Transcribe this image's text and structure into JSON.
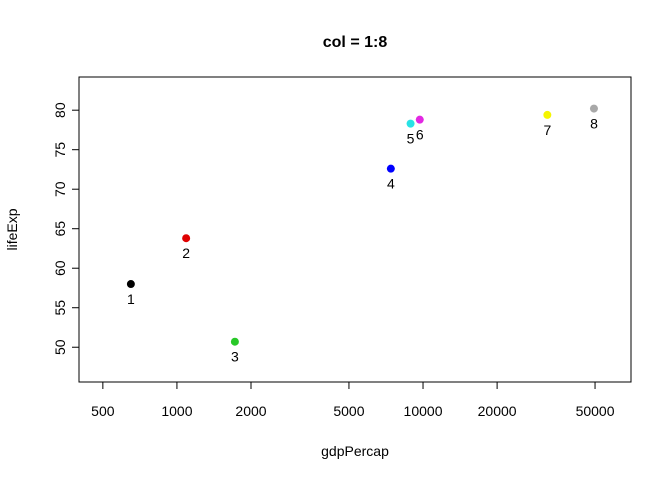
{
  "chart_data": {
    "type": "scatter",
    "title": "col = 1:8",
    "xlabel": "gdpPercap",
    "ylabel": "lifeExp",
    "x_scale": "log",
    "xlim": [
      400,
      70000
    ],
    "ylim": [
      45.6,
      84.2
    ],
    "x_ticks": [
      500,
      1000,
      2000,
      5000,
      10000,
      20000,
      50000
    ],
    "y_ticks": [
      50,
      55,
      60,
      65,
      70,
      75,
      80
    ],
    "grid": false,
    "points": [
      {
        "label": "1",
        "x": 650,
        "y": 58.0,
        "color": "#000000"
      },
      {
        "label": "2",
        "x": 1090,
        "y": 63.8,
        "color": "#DF0000"
      },
      {
        "label": "3",
        "x": 1720,
        "y": 50.7,
        "color": "#28C828"
      },
      {
        "label": "4",
        "x": 7400,
        "y": 72.6,
        "color": "#0000FF"
      },
      {
        "label": "5",
        "x": 8900,
        "y": 78.3,
        "color": "#28E2E5"
      },
      {
        "label": "6",
        "x": 9700,
        "y": 78.8,
        "color": "#E228E2"
      },
      {
        "label": "7",
        "x": 32000,
        "y": 79.4,
        "color": "#F5F500"
      },
      {
        "label": "8",
        "x": 49500,
        "y": 80.2,
        "color": "#A8A8A8"
      }
    ]
  }
}
